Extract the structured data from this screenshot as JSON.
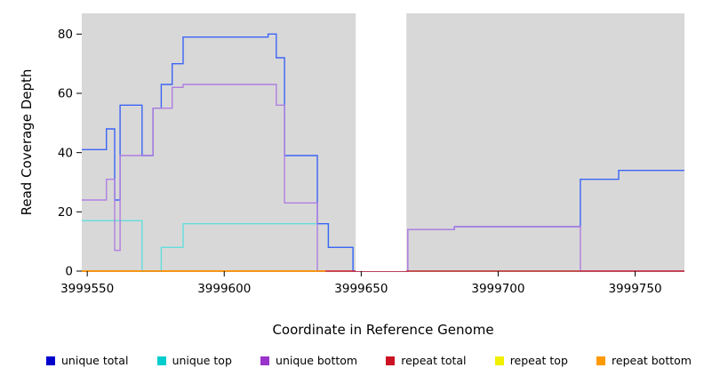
{
  "chart_data": {
    "type": "line",
    "step": true,
    "title": "",
    "xlabel": "Coordinate in Reference Genome",
    "ylabel": "Read Coverage Depth",
    "x_range": [
      3999548,
      3999768
    ],
    "y_range": [
      0,
      87
    ],
    "x_ticks": [
      3999550,
      3999600,
      3999650,
      3999700,
      3999750
    ],
    "y_ticks": [
      0,
      20,
      40,
      60,
      80
    ],
    "grid": false,
    "panel_background": "#d8d8d8",
    "tick_color": "#000000",
    "masked_region": {
      "x_start": 3999648,
      "x_end": 3999666.5,
      "color": "#ffffff"
    },
    "series": [
      {
        "name": "repeat top",
        "line_color": "#f0f000",
        "points": [
          [
            3999548,
            0
          ],
          [
            3999768,
            0
          ]
        ]
      },
      {
        "name": "unique top",
        "line_color": "#63dddd",
        "points": [
          [
            3999548,
            17
          ],
          [
            3999570,
            0
          ],
          [
            3999577,
            8
          ],
          [
            3999585,
            16
          ],
          [
            3999638,
            8
          ],
          [
            3999647,
            0
          ],
          [
            3999768,
            0
          ]
        ]
      },
      {
        "name": "unique total",
        "line_color": "#3c64f5",
        "points": [
          [
            3999548,
            41
          ],
          [
            3999557,
            48
          ],
          [
            3999560,
            24
          ],
          [
            3999562,
            56
          ],
          [
            3999570,
            39
          ],
          [
            3999574,
            55
          ],
          [
            3999577,
            63
          ],
          [
            3999581,
            70
          ],
          [
            3999585,
            79
          ],
          [
            3999616,
            80
          ],
          [
            3999619,
            72
          ],
          [
            3999622,
            39
          ],
          [
            3999634,
            16
          ],
          [
            3999638,
            8
          ],
          [
            3999647,
            0
          ],
          [
            3999667,
            14
          ],
          [
            3999684,
            15
          ],
          [
            3999730,
            31
          ],
          [
            3999744,
            34
          ],
          [
            3999768,
            34
          ]
        ]
      },
      {
        "name": "unique bottom",
        "line_color": "#b07fe0",
        "points": [
          [
            3999548,
            24
          ],
          [
            3999557,
            31
          ],
          [
            3999560,
            7
          ],
          [
            3999562,
            39
          ],
          [
            3999574,
            55
          ],
          [
            3999581,
            62
          ],
          [
            3999585,
            63
          ],
          [
            3999619,
            56
          ],
          [
            3999622,
            23
          ],
          [
            3999634,
            0
          ],
          [
            3999667,
            14
          ],
          [
            3999684,
            15
          ],
          [
            3999730,
            0
          ],
          [
            3999768,
            0
          ]
        ]
      },
      {
        "name": "repeat total",
        "line_color": "#cc2233",
        "points": [
          [
            3999548,
            0
          ],
          [
            3999768,
            0
          ]
        ]
      },
      {
        "name": "repeat bottom",
        "line_color": "#ff9900",
        "points": [
          [
            3999548,
            0
          ],
          [
            3999637,
            0
          ]
        ]
      }
    ],
    "legend": {
      "position": "bottom",
      "items": [
        {
          "label": "unique total",
          "color": "#0000cd"
        },
        {
          "label": "unique top",
          "color": "#00cdcd"
        },
        {
          "label": "unique bottom",
          "color": "#9933cc"
        },
        {
          "label": "repeat total",
          "color": "#cc1122"
        },
        {
          "label": "repeat top",
          "color": "#f0f000"
        },
        {
          "label": "repeat bottom",
          "color": "#ff9900"
        }
      ]
    }
  }
}
